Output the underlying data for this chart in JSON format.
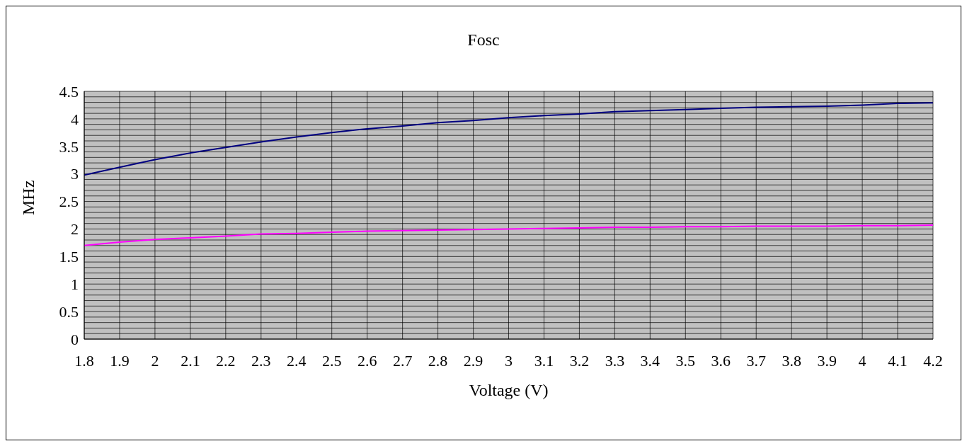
{
  "chart_data": {
    "type": "line",
    "title": "Fosc",
    "xlabel": "Voltage (V)",
    "ylabel": "MHz",
    "x": [
      1.8,
      1.9,
      2.0,
      2.1,
      2.2,
      2.3,
      2.4,
      2.5,
      2.6,
      2.7,
      2.8,
      2.9,
      3.0,
      3.1,
      3.2,
      3.3,
      3.4,
      3.5,
      3.6,
      3.7,
      3.8,
      3.9,
      4.0,
      4.1,
      4.2
    ],
    "series": [
      {
        "color": "#000080",
        "values": [
          2.98,
          3.12,
          3.26,
          3.38,
          3.48,
          3.58,
          3.67,
          3.75,
          3.82,
          3.87,
          3.93,
          3.97,
          4.02,
          4.06,
          4.09,
          4.13,
          4.15,
          4.17,
          4.19,
          4.21,
          4.22,
          4.23,
          4.25,
          4.28,
          4.29
        ]
      },
      {
        "color": "#ff00ff",
        "values": [
          1.7,
          1.76,
          1.81,
          1.84,
          1.87,
          1.91,
          1.92,
          1.94,
          1.96,
          1.97,
          1.98,
          1.99,
          2.0,
          2.01,
          2.02,
          2.03,
          2.03,
          2.04,
          2.04,
          2.05,
          2.05,
          2.05,
          2.06,
          2.06,
          2.07
        ]
      }
    ],
    "xlim": [
      1.8,
      4.2
    ],
    "xticks": [
      1.8,
      1.9,
      2,
      2.1,
      2.2,
      2.3,
      2.4,
      2.5,
      2.6,
      2.7,
      2.8,
      2.9,
      3,
      3.1,
      3.2,
      3.3,
      3.4,
      3.5,
      3.6,
      3.7,
      3.8,
      3.9,
      4,
      4.1,
      4.2
    ],
    "ylim": [
      0,
      4.5
    ],
    "yticks": [
      0,
      {
        "value": 0.1,
        "label": null
      },
      {
        "value": 0.2,
        "label": null
      },
      {
        "value": 0.3,
        "label": null
      },
      {
        "value": 0.4,
        "label": null
      },
      0.5,
      {
        "value": 0.6,
        "label": null
      },
      {
        "value": 0.7,
        "label": null
      },
      {
        "value": 0.8,
        "label": null
      },
      {
        "value": 0.9,
        "label": null
      },
      1,
      {
        "value": 1.1,
        "label": null
      },
      {
        "value": 1.2,
        "label": null
      },
      {
        "value": 1.3,
        "label": null
      },
      {
        "value": 1.4,
        "label": null
      },
      1.5,
      {
        "value": 1.6,
        "label": null
      },
      {
        "value": 1.7,
        "label": null
      },
      {
        "value": 1.8,
        "label": null
      },
      {
        "value": 1.9,
        "label": null
      },
      2,
      {
        "value": 2.1,
        "label": null
      },
      {
        "value": 2.2,
        "label": null
      },
      {
        "value": 2.3,
        "label": null
      },
      {
        "value": 2.4,
        "label": null
      },
      2.5,
      {
        "value": 2.6,
        "label": null
      },
      {
        "value": 2.7,
        "label": null
      },
      {
        "value": 2.8,
        "label": null
      },
      {
        "value": 2.9,
        "label": null
      },
      3,
      {
        "value": 3.1,
        "label": null
      },
      {
        "value": 3.2,
        "label": null
      },
      {
        "value": 3.3,
        "label": null
      },
      {
        "value": 3.4,
        "label": null
      },
      3.5,
      {
        "value": 3.6,
        "label": null
      },
      {
        "value": 3.7,
        "label": null
      },
      {
        "value": 3.8,
        "label": null
      },
      {
        "value": 3.9,
        "label": null
      },
      4,
      {
        "value": 4.1,
        "label": null
      },
      {
        "value": 4.2,
        "label": null
      },
      {
        "value": 4.3,
        "label": null
      },
      {
        "value": 4.4,
        "label": null
      },
      4.5
    ],
    "grid": true,
    "marker": "none",
    "line_style": "solid"
  }
}
